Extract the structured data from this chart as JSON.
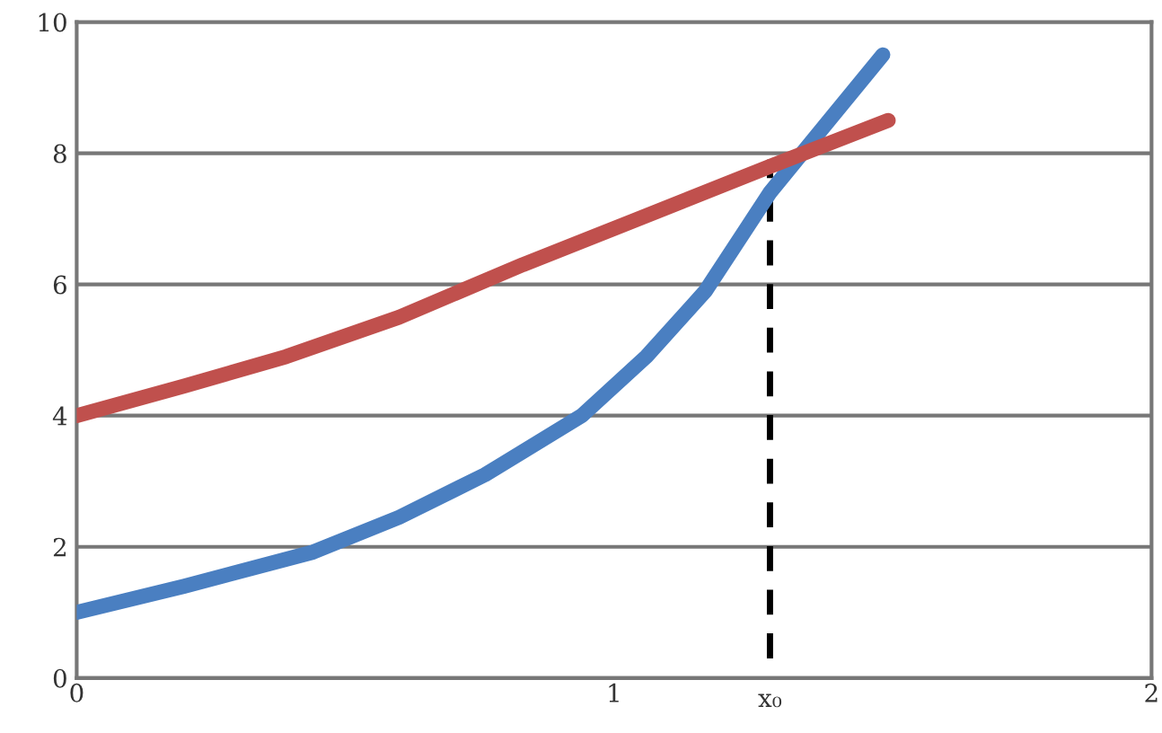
{
  "chart_data": {
    "type": "line",
    "xlim": [
      0,
      2
    ],
    "ylim": [
      0,
      10
    ],
    "xticks": [
      0,
      1,
      2
    ],
    "yticks": [
      0,
      2,
      4,
      6,
      8,
      10
    ],
    "grid": "y",
    "series": [
      {
        "color": "#4a7fc1",
        "x": [
          0,
          0.2,
          0.44,
          0.6,
          0.76,
          0.94,
          1.06,
          1.17,
          1.29,
          1.39,
          1.5
        ],
        "values": [
          1.0,
          1.4,
          1.92,
          2.45,
          3.1,
          4.0,
          4.9,
          5.9,
          7.4,
          8.4,
          9.5
        ]
      },
      {
        "color": "#c0504d",
        "x": [
          0,
          0.2,
          0.39,
          0.6,
          0.83,
          1.03,
          1.29,
          1.51
        ],
        "values": [
          4.0,
          4.45,
          4.9,
          5.5,
          6.3,
          6.95,
          7.8,
          8.5
        ]
      }
    ],
    "ref_lines": [
      {
        "axis": "x",
        "value": 1.29,
        "label": "x₀",
        "color": "#000000",
        "line_style": "dashed"
      }
    ]
  }
}
